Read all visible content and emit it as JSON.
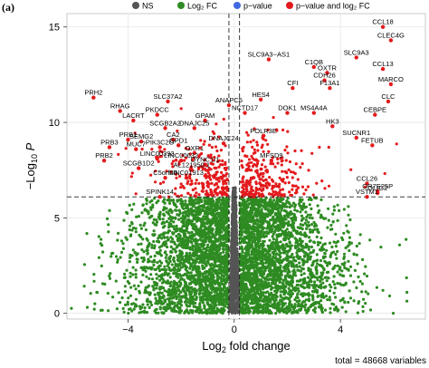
{
  "panel_label": "(a)",
  "caption": "total = 48668 variables",
  "chart_data": {
    "type": "scatter",
    "title": "",
    "xlabel": "Log2 fold change",
    "xlabel_base": "Log",
    "xlabel_sub": "2",
    "xlabel_rest": " fold change",
    "ylabel_main": "−Log",
    "ylabel_sub": "10",
    "ylabel_p": "P",
    "xlim": [
      -6.3,
      7.2
    ],
    "ylim": [
      -0.3,
      15.7
    ],
    "xticks": [
      -4,
      0,
      4
    ],
    "xtick_labels": [
      "−4",
      "0",
      "4"
    ],
    "yticks": [
      0,
      5,
      10,
      15
    ],
    "ytick_labels": [
      "0",
      "5",
      "10",
      "15"
    ],
    "grid": true,
    "fc_cutoff": 0.2,
    "p_cutoff": 6.1,
    "legend_position": "top",
    "legend": [
      {
        "label": "NS",
        "color": "#555555"
      },
      {
        "label": "Log₂ FC",
        "color": "#2e8b22"
      },
      {
        "label": "p−value",
        "color": "#4169e1"
      },
      {
        "label": "p−value and log₂ FC",
        "color": "#e31a1c"
      }
    ],
    "labeled_points": [
      {
        "name": "CCL18",
        "x": 5.6,
        "y": 15.0
      },
      {
        "name": "CLEC4G",
        "x": 5.9,
        "y": 14.3
      },
      {
        "name": "SLC9A3",
        "x": 4.6,
        "y": 13.4
      },
      {
        "name": "SLC9A3−AS1",
        "x": 1.3,
        "y": 13.3
      },
      {
        "name": "C1QB",
        "x": 3.0,
        "y": 12.9
      },
      {
        "name": "CCL13",
        "x": 5.6,
        "y": 12.8
      },
      {
        "name": "OXTR",
        "x": 3.5,
        "y": 12.6
      },
      {
        "name": "CDH26",
        "x": 3.4,
        "y": 12.2
      },
      {
        "name": "MARCO",
        "x": 5.9,
        "y": 12.0
      },
      {
        "name": "F13A1",
        "x": 3.6,
        "y": 11.8
      },
      {
        "name": "CFI",
        "x": 2.2,
        "y": 11.8
      },
      {
        "name": "PRH2",
        "x": -5.3,
        "y": 11.3
      },
      {
        "name": "SLC37A2",
        "x": -2.5,
        "y": 11.1
      },
      {
        "name": "HES4",
        "x": 1.0,
        "y": 11.2
      },
      {
        "name": "CLC",
        "x": 5.8,
        "y": 11.1
      },
      {
        "name": "ANAPC5",
        "x": -0.2,
        "y": 10.9
      },
      {
        "name": "RHAG",
        "x": -4.3,
        "y": 10.6
      },
      {
        "name": "NCTD17",
        "x": 0.4,
        "y": 10.5
      },
      {
        "name": "DOK1",
        "x": 2.0,
        "y": 10.5
      },
      {
        "name": "MS4A4A",
        "x": 3.0,
        "y": 10.5
      },
      {
        "name": "CEBPE",
        "x": 5.3,
        "y": 10.4
      },
      {
        "name": "PKDCC",
        "x": -2.9,
        "y": 10.4
      },
      {
        "name": "LACRT",
        "x": -3.8,
        "y": 10.1
      },
      {
        "name": "GPAM",
        "x": -1.1,
        "y": 10.1
      },
      {
        "name": "HK3",
        "x": 3.7,
        "y": 9.8
      },
      {
        "name": "DNAJC25",
        "x": -1.5,
        "y": 9.7
      },
      {
        "name": "SCGB2A2",
        "x": -2.6,
        "y": 9.7
      },
      {
        "name": "POLR3E",
        "x": 1.1,
        "y": 9.3
      },
      {
        "name": "SUCNR1",
        "x": 4.6,
        "y": 9.2
      },
      {
        "name": "PRB1",
        "x": -4.0,
        "y": 9.1
      },
      {
        "name": "CA2",
        "x": -2.3,
        "y": 9.1
      },
      {
        "name": "DNAJC24",
        "x": -0.4,
        "y": 8.9
      },
      {
        "name": "SEMG2",
        "x": -3.5,
        "y": 9.0
      },
      {
        "name": "FETUB",
        "x": 5.2,
        "y": 8.8
      },
      {
        "name": "PIK3C2G",
        "x": -2.8,
        "y": 8.7
      },
      {
        "name": "GPD1",
        "x": -2.1,
        "y": 8.8
      },
      {
        "name": "PRB3",
        "x": -4.7,
        "y": 8.7
      },
      {
        "name": "MUC7",
        "x": -3.7,
        "y": 8.6
      },
      {
        "name": "OXR1",
        "x": -1.5,
        "y": 8.4
      },
      {
        "name": "PRB2",
        "x": -4.9,
        "y": 8.0
      },
      {
        "name": "LINC00393",
        "x": -2.9,
        "y": 8.1
      },
      {
        "name": "MFSD9",
        "x": 1.4,
        "y": 8.0
      },
      {
        "name": "LINC00632",
        "x": -2.0,
        "y": 8.0
      },
      {
        "name": "SCGB1D2",
        "x": -3.6,
        "y": 7.6
      },
      {
        "name": "DYNC1I1",
        "x": -1.1,
        "y": 7.8
      },
      {
        "name": "AL121950.1",
        "x": -1.6,
        "y": 7.5
      },
      {
        "name": "C5orf46",
        "x": -2.6,
        "y": 7.1
      },
      {
        "name": "LINC01913",
        "x": -1.8,
        "y": 7.1
      },
      {
        "name": "CCL26",
        "x": 5.0,
        "y": 6.8
      },
      {
        "name": "OR7E25P",
        "x": 5.4,
        "y": 6.4
      },
      {
        "name": "OLIG2",
        "x": 5.4,
        "y": 6.3
      },
      {
        "name": "SPINK14",
        "x": -2.8,
        "y": 6.1
      },
      {
        "name": "VSTM1",
        "x": 5.0,
        "y": 6.1
      }
    ]
  }
}
